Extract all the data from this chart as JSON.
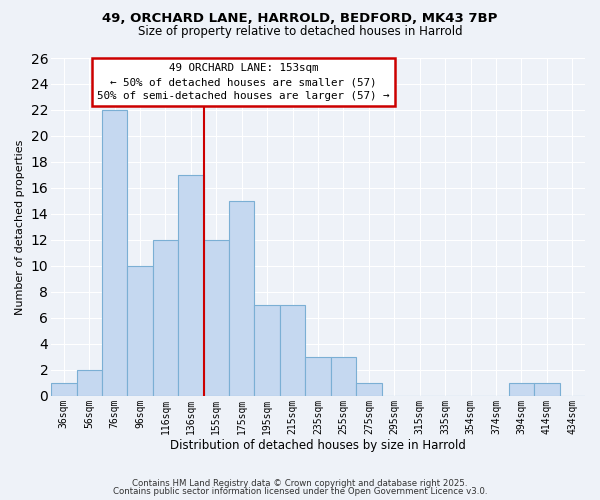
{
  "title_line1": "49, ORCHARD LANE, HARROLD, BEDFORD, MK43 7BP",
  "title_line2": "Size of property relative to detached houses in Harrold",
  "xlabel": "Distribution of detached houses by size in Harrold",
  "ylabel": "Number of detached properties",
  "bin_labels": [
    "36sqm",
    "56sqm",
    "76sqm",
    "96sqm",
    "116sqm",
    "136sqm",
    "155sqm",
    "175sqm",
    "195sqm",
    "215sqm",
    "235sqm",
    "255sqm",
    "275sqm",
    "295sqm",
    "315sqm",
    "335sqm",
    "354sqm",
    "374sqm",
    "394sqm",
    "414sqm",
    "434sqm"
  ],
  "bar_values": [
    1,
    2,
    22,
    10,
    12,
    17,
    12,
    15,
    7,
    7,
    3,
    3,
    1,
    0,
    0,
    0,
    0,
    0,
    1,
    1,
    0
  ],
  "bar_color": "#c5d8f0",
  "bar_edge_color": "#7bafd4",
  "ylim": [
    0,
    26
  ],
  "yticks": [
    0,
    2,
    4,
    6,
    8,
    10,
    12,
    14,
    16,
    18,
    20,
    22,
    24,
    26
  ],
  "vline_color": "#cc0000",
  "annotation_title": "49 ORCHARD LANE: 153sqm",
  "annotation_line2": "← 50% of detached houses are smaller (57)",
  "annotation_line3": "50% of semi-detached houses are larger (57) →",
  "annotation_box_color": "#ffffff",
  "annotation_box_edge": "#cc0000",
  "footer_line1": "Contains HM Land Registry data © Crown copyright and database right 2025.",
  "footer_line2": "Contains public sector information licensed under the Open Government Licence v3.0.",
  "background_color": "#eef2f8",
  "grid_color": "#ffffff"
}
